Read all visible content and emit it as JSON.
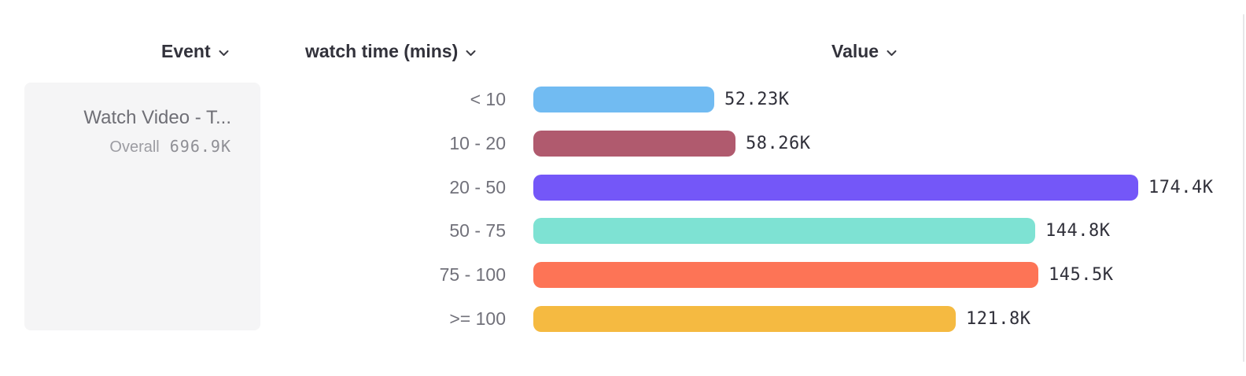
{
  "header": {
    "columns": [
      {
        "label": "Event"
      },
      {
        "label": "watch time (mins)"
      },
      {
        "label": "Value"
      }
    ]
  },
  "event_card": {
    "title": "Watch Video - T...",
    "overall_label": "Overall",
    "overall_value": "696.9K"
  },
  "chart_data": {
    "type": "bar",
    "orientation": "horizontal",
    "title": "",
    "xlabel": "Value",
    "ylabel": "watch time (mins)",
    "legend": false,
    "grid": false,
    "categories": [
      "< 10",
      "10 - 20",
      "20 - 50",
      "50 - 75",
      "75 - 100",
      ">= 100"
    ],
    "values": [
      52230,
      58260,
      174400,
      144800,
      145500,
      121800
    ],
    "value_labels": [
      "52.23K",
      "58.26K",
      "174.4K",
      "144.8K",
      "145.5K",
      "121.8K"
    ],
    "bar_colors": [
      "#71bbf2",
      "#b05a6e",
      "#7457f8",
      "#7ee2d3",
      "#fd7456",
      "#f5ba41"
    ],
    "xlim": [
      0,
      180000
    ]
  }
}
